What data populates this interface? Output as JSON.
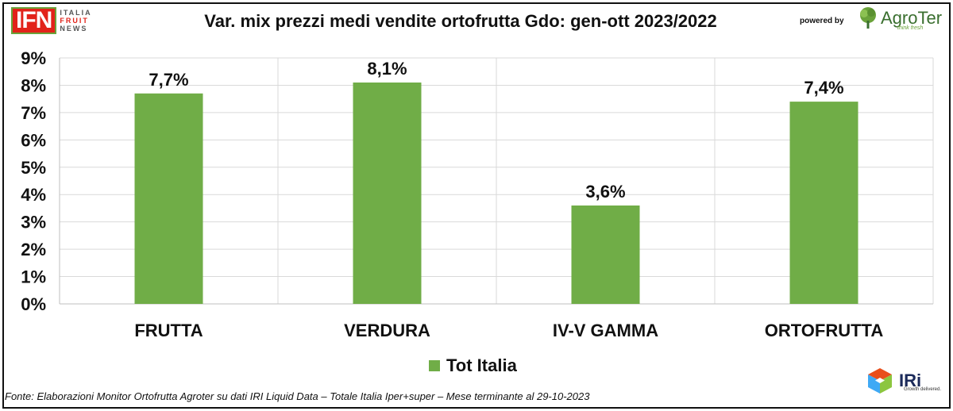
{
  "header": {
    "ifn_logo": {
      "main": "IFN",
      "line1": "ITALIA",
      "line2": "FRUIT",
      "line3": "NEWS"
    },
    "title": "Var. mix prezzi medi vendite ortofrutta Gdo: gen-ott 2023/2022",
    "powered_by": "powered by",
    "agroter_logo": {
      "name": "AgroTer",
      "tagline": "think fresh"
    }
  },
  "chart_data": {
    "type": "bar",
    "title": "Var. mix prezzi medi vendite ortofrutta Gdo: gen-ott 2023/2022",
    "categories": [
      "FRUTTA",
      "VERDURA",
      "IV-V GAMMA",
      "ORTOFRUTTA"
    ],
    "series": [
      {
        "name": "Tot Italia",
        "values": [
          7.7,
          8.1,
          3.6,
          7.4
        ],
        "labels": [
          "7,7%",
          "8,1%",
          "3,6%",
          "7,4%"
        ]
      }
    ],
    "ylim": [
      0,
      9
    ],
    "yticks": [
      "0%",
      "1%",
      "2%",
      "3%",
      "4%",
      "5%",
      "6%",
      "7%",
      "8%",
      "9%"
    ],
    "xlabel": "",
    "ylabel": "",
    "grid": true,
    "legend": "bottom",
    "bar_color": "#70ad47"
  },
  "footer": {
    "source": "Fonte: Elaborazioni Monitor Ortofrutta Agroter su dati IRI Liquid Data – Totale Italia Iper+super – Mese terminante al 29-10-2023",
    "iri_logo": {
      "name": "IRi",
      "tagline": "Growth delivered."
    }
  }
}
